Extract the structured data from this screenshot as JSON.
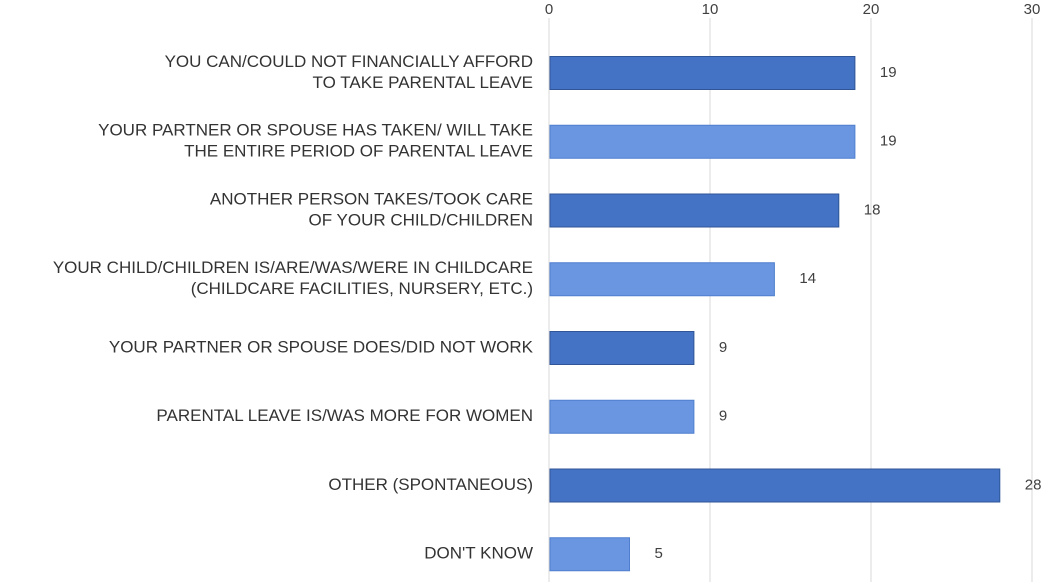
{
  "chart_data": {
    "type": "bar",
    "orientation": "horizontal",
    "title": "",
    "xlabel": "",
    "ylabel": "",
    "xlim": [
      0,
      30
    ],
    "x_ticks": [
      0,
      10,
      20,
      30
    ],
    "grid": true,
    "legend": "none",
    "categories": [
      "YOU CAN/COULD NOT FINANCIALLY AFFORD\nTO TAKE PARENTAL LEAVE",
      "YOUR PARTNER OR SPOUSE HAS TAKEN/ WILL TAKE\nTHE ENTIRE PERIOD OF PARENTAL LEAVE",
      "ANOTHER PERSON TAKES/TOOK CARE\nOF YOUR CHILD/CHILDREN",
      "YOUR CHILD/CHILDREN IS/ARE/WAS/WERE IN CHILDCARE\n(CHILDCARE FACILITIES, NURSERY, ETC.)",
      "YOUR PARTNER OR SPOUSE DOES/DID NOT WORK",
      "PARENTAL LEAVE IS/WAS MORE FOR WOMEN",
      "OTHER (SPONTANEOUS)",
      "DON'T KNOW"
    ],
    "values": [
      19,
      19,
      18,
      14,
      9,
      9,
      28,
      5
    ],
    "data_labels": [
      "19",
      "19",
      "18",
      "14",
      "9",
      "9",
      "28",
      "5"
    ],
    "colors": {
      "dark_bar": "#4472C4",
      "light_bar": "#6A95E0",
      "bar_border_dark": "#2F5597",
      "bar_border_light": "#4F7FCE",
      "gridline": "#D9D9D9"
    }
  }
}
